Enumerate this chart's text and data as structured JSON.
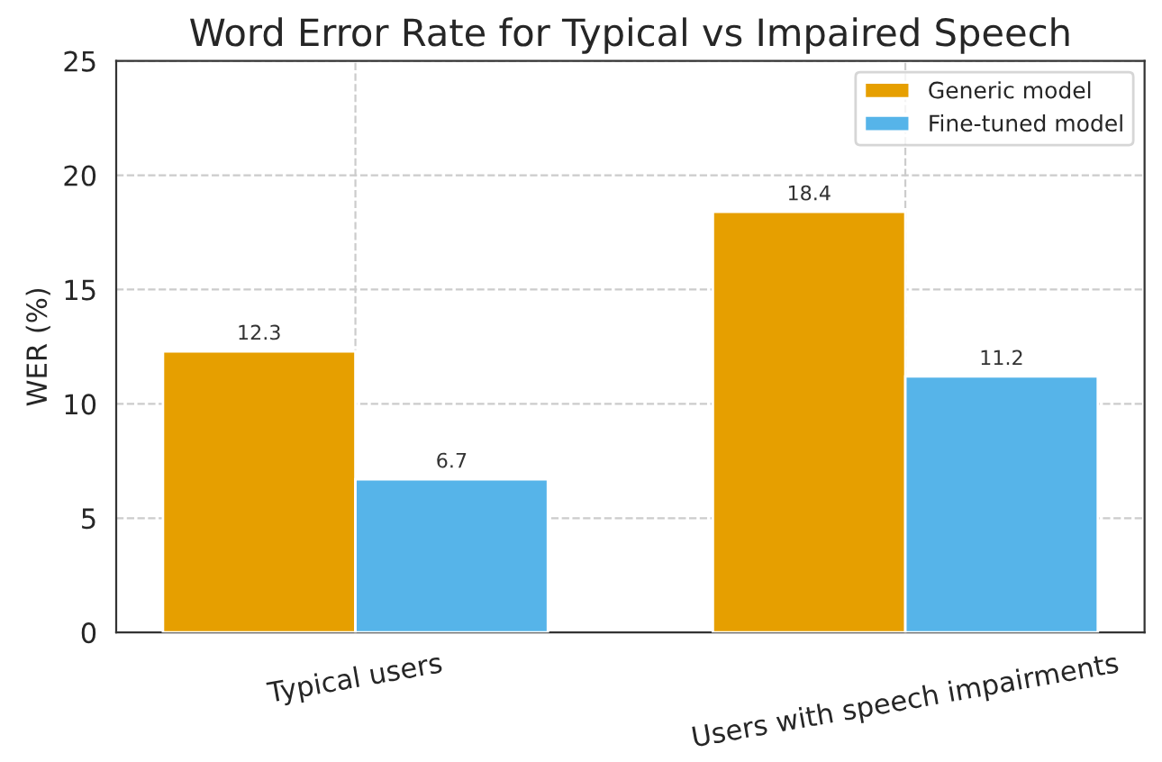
{
  "chart_data": {
    "type": "bar",
    "title": "Word Error Rate for Typical vs Impaired Speech",
    "ylabel": "WER (%)",
    "categories": [
      "Typical users",
      "Users with speech impairments"
    ],
    "series": [
      {
        "name": "Generic model",
        "color": "#e69f00",
        "values": [
          12.3,
          18.4
        ]
      },
      {
        "name": "Fine-tuned model",
        "color": "#56b4e9",
        "values": [
          6.7,
          11.2
        ]
      }
    ],
    "ylim": [
      0,
      25
    ],
    "yticks": [
      0,
      5,
      10,
      15,
      20,
      25
    ],
    "grid": true,
    "legend": "top right",
    "data_labels": true
  }
}
